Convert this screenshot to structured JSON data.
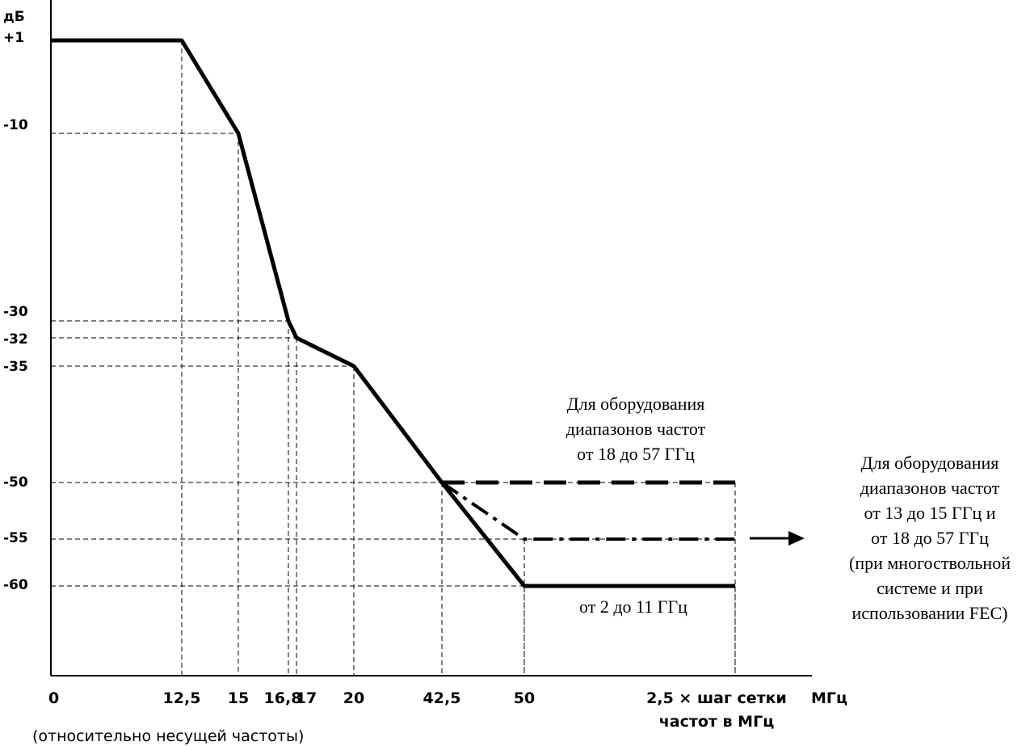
{
  "chart_data": {
    "type": "line",
    "title": "",
    "xlabel": "",
    "ylabel": "дБ",
    "x_unit": "МГц",
    "x_note": "(относительно несущей частоты)",
    "last_tick_lines": [
      "2,5 × шаг сетки",
      "частот в МГц"
    ],
    "y_ticks": [
      "+1",
      "-10",
      "-30",
      "-32",
      "-35",
      "-50",
      "-55",
      "-60"
    ],
    "x_ticks": [
      "0",
      "12,5",
      "15",
      "16,8",
      "17",
      "20",
      "42,5",
      "50"
    ],
    "series": [
      {
        "style": "solid",
        "label": "от 2 до 11 ГГц",
        "points": [
          [
            0,
            1
          ],
          [
            12.5,
            1
          ],
          [
            15,
            -10
          ],
          [
            16.8,
            -30
          ],
          [
            17,
            -32
          ],
          [
            20,
            -35
          ],
          [
            42.5,
            -50
          ],
          [
            50,
            -60
          ],
          [
            "2,5 × шаг сетки",
            -60
          ]
        ]
      },
      {
        "style": "dashed",
        "label_lines": [
          "Для оборудования",
          "диапазонов частот",
          "от 18 до 57 ГГц"
        ],
        "points": [
          [
            42.5,
            -50
          ],
          [
            "2,5 × шаг сетки",
            -50
          ]
        ]
      },
      {
        "style": "dash-dot",
        "label_lines": [
          "Для оборудования",
          "диапазонов частот",
          "от 13 до 15 ГГц и",
          "от 18 до 57 ГГц",
          "(при многоствольной",
          "системе и при",
          "использовании FEC)"
        ],
        "points": [
          [
            42.5,
            -50
          ],
          [
            50,
            -55
          ],
          [
            "2,5 × шаг сетки",
            -55
          ]
        ]
      }
    ]
  }
}
